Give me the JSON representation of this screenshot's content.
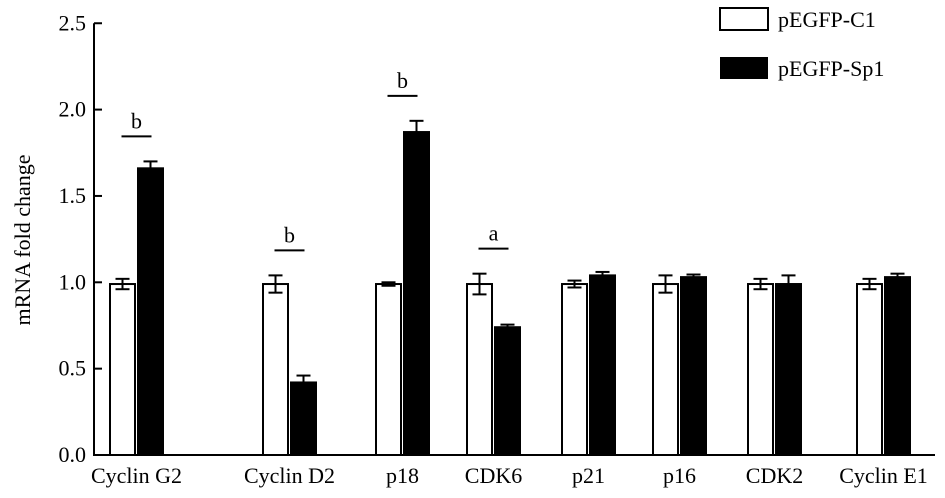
{
  "chart_data": {
    "type": "bar",
    "title": "",
    "xlabel": "",
    "ylabel": "mRNA fold change",
    "ylim": [
      0,
      2.5
    ],
    "yticks": [
      "0.0",
      "0.5",
      "1.0",
      "1.5",
      "2.0",
      "2.5"
    ],
    "categories": [
      "Cyclin G2",
      "Cyclin D2",
      "p18",
      "CDK6",
      "p21",
      "p16",
      "CDK2",
      "Cyclin E1"
    ],
    "series": [
      {
        "name": "pEGFP-C1",
        "color": "#ffffff",
        "values": [
          0.99,
          0.99,
          0.99,
          0.99,
          0.99,
          0.99,
          0.99,
          0.99
        ],
        "errors": [
          0.03,
          0.05,
          0.01,
          0.06,
          0.02,
          0.05,
          0.03,
          0.03
        ]
      },
      {
        "name": "pEGFP-Sp1",
        "color": "#000000",
        "values": [
          1.66,
          0.42,
          1.87,
          0.74,
          1.04,
          1.03,
          0.99,
          1.03
        ],
        "errors": [
          0.04,
          0.04,
          0.065,
          0.015,
          0.02,
          0.015,
          0.05,
          0.02
        ]
      }
    ],
    "significance": [
      "b",
      "b",
      "b",
      "a",
      "",
      "",
      "",
      ""
    ],
    "legend": "top-right"
  }
}
